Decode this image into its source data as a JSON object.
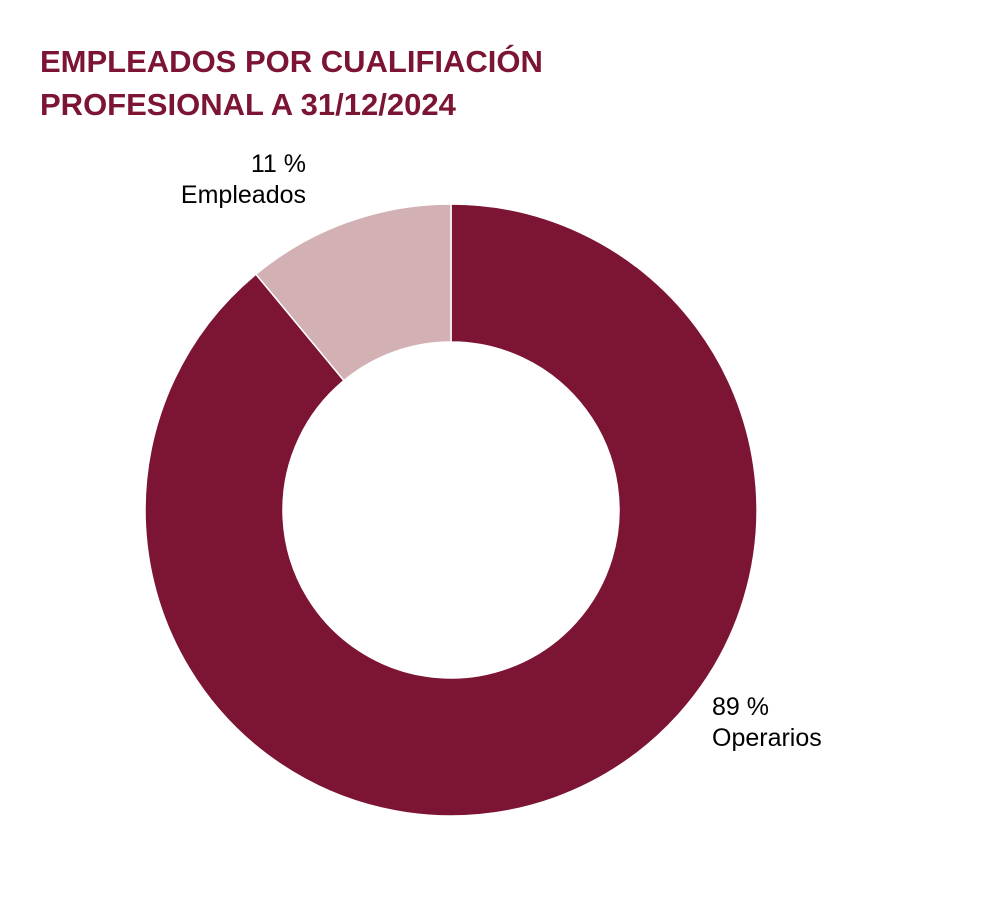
{
  "chart_data": {
    "type": "pie",
    "title_lines": [
      "EMPLEADOS POR CUALIFIACIÓN",
      "PROFESIONAL A 31/12/2024"
    ],
    "slices": [
      {
        "name": "Operarios",
        "value": 89,
        "value_label": "89 %",
        "color": "#7c1434"
      },
      {
        "name": "Empleados",
        "value": 11,
        "value_label": "11 %",
        "color": "#d2b0b4"
      }
    ],
    "unit": "%",
    "donut": true,
    "legend": "none"
  }
}
